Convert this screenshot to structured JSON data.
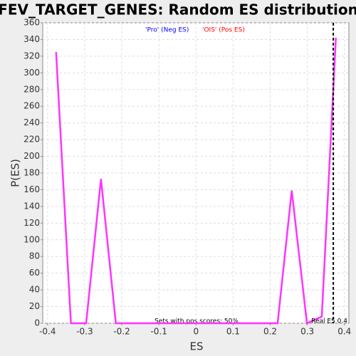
{
  "chart_data": {
    "type": "line",
    "title": "FEV_TARGET_GENES: Random ES distribution",
    "x_label": "ES",
    "y_label": "P(ES)",
    "legend": [
      {
        "name": "'Pro' (Neg ES)",
        "color": "#0000ff"
      },
      {
        "name": "'OIS' (Pos ES)",
        "color": "#ff0000"
      }
    ],
    "series": [
      {
        "name": "ES distribution",
        "color": "#ff33ff",
        "x": [
          -0.377,
          -0.337,
          -0.296,
          -0.256,
          -0.216,
          -0.176,
          -0.136,
          -0.096,
          -0.055,
          -0.015,
          0.025,
          0.065,
          0.105,
          0.145,
          0.185,
          0.22,
          0.258,
          0.299,
          0.339,
          0.377
        ],
        "values": [
          325,
          0,
          0,
          173,
          0,
          0,
          0,
          0,
          0,
          0,
          0,
          0,
          0,
          0,
          0,
          0,
          159,
          0,
          8,
          342
        ]
      }
    ],
    "real_es": 0.37,
    "real_es_label": "Real ES 0.4",
    "annotation": "Sets with pos scores: 50%",
    "xlim": [
      -0.413,
      0.412
    ],
    "xticks": [
      -0.4,
      -0.3,
      -0.2,
      -0.1,
      0,
      0.1,
      0.2,
      0.3,
      0.4
    ],
    "ylim": [
      0,
      360
    ],
    "yticks": [
      0,
      20,
      40,
      60,
      80,
      100,
      120,
      140,
      160,
      180,
      200,
      220,
      240,
      260,
      280,
      300,
      320,
      340,
      360
    ],
    "grid": true
  }
}
